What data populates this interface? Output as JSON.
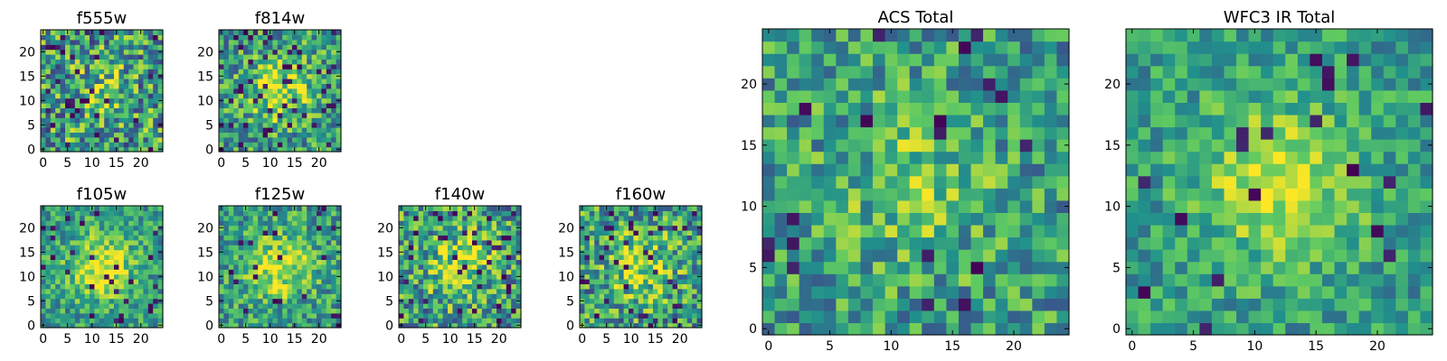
{
  "chart_data": [
    {
      "type": "heatmap",
      "title": "f555w",
      "seed": 11,
      "blob": 0.15,
      "dark": 0.05,
      "noise": 0.55,
      "xticks": [
        "0",
        "5",
        "10",
        "15",
        "20"
      ],
      "yticks": [
        "0",
        "5",
        "10",
        "15",
        "20"
      ],
      "xlim": [
        0,
        24
      ],
      "ylim": [
        0,
        24
      ],
      "grid_size": 25
    },
    {
      "type": "heatmap",
      "title": "f814w",
      "seed": 23,
      "blob": 0.35,
      "dark": 0.07,
      "noise": 0.45,
      "xticks": [
        "0",
        "5",
        "10",
        "15",
        "20"
      ],
      "yticks": [
        "0",
        "5",
        "10",
        "15",
        "20"
      ],
      "xlim": [
        0,
        24
      ],
      "ylim": [
        0,
        24
      ],
      "grid_size": 25
    },
    {
      "type": "heatmap",
      "title": "f105w",
      "seed": 37,
      "blob": 0.45,
      "dark": 0.03,
      "noise": 0.35,
      "xticks": [
        "0",
        "5",
        "10",
        "15",
        "20"
      ],
      "yticks": [
        "0",
        "5",
        "10",
        "15",
        "20"
      ],
      "xlim": [
        0,
        24
      ],
      "ylim": [
        0,
        24
      ],
      "grid_size": 25
    },
    {
      "type": "heatmap",
      "title": "f125w",
      "seed": 41,
      "blob": 0.4,
      "dark": 0.03,
      "noise": 0.4,
      "xticks": [
        "0",
        "5",
        "10",
        "15",
        "20"
      ],
      "yticks": [
        "0",
        "5",
        "10",
        "15",
        "20"
      ],
      "xlim": [
        0,
        24
      ],
      "ylim": [
        0,
        24
      ],
      "grid_size": 25
    },
    {
      "type": "heatmap",
      "title": "f140w",
      "seed": 53,
      "blob": 0.35,
      "dark": 0.06,
      "noise": 0.5,
      "xticks": [
        "0",
        "5",
        "10",
        "15",
        "20"
      ],
      "yticks": [
        "0",
        "5",
        "10",
        "15",
        "20"
      ],
      "xlim": [
        0,
        24
      ],
      "ylim": [
        0,
        24
      ],
      "grid_size": 25
    },
    {
      "type": "heatmap",
      "title": "f160w",
      "seed": 67,
      "blob": 0.35,
      "dark": 0.05,
      "noise": 0.5,
      "xticks": [
        "0",
        "5",
        "10",
        "15",
        "20"
      ],
      "yticks": [
        "0",
        "5",
        "10",
        "15",
        "20"
      ],
      "xlim": [
        0,
        24
      ],
      "ylim": [
        0,
        24
      ],
      "grid_size": 25
    },
    {
      "type": "heatmap",
      "title": "ACS Total",
      "seed": 79,
      "blob": 0.2,
      "dark": 0.03,
      "noise": 0.4,
      "xticks": [
        "0",
        "5",
        "10",
        "15",
        "20"
      ],
      "yticks": [
        "0",
        "5",
        "10",
        "15",
        "20"
      ],
      "xlim": [
        0,
        24
      ],
      "ylim": [
        0,
        24
      ],
      "grid_size": 25
    },
    {
      "type": "heatmap",
      "title": "WFC3 IR Total",
      "seed": 97,
      "blob": 0.4,
      "dark": 0.03,
      "noise": 0.3,
      "xticks": [
        "0",
        "5",
        "10",
        "15",
        "20"
      ],
      "yticks": [
        "0",
        "5",
        "10",
        "15",
        "20"
      ],
      "xlim": [
        0,
        24
      ],
      "ylim": [
        0,
        24
      ],
      "grid_size": 25
    }
  ],
  "colormap": [
    "#440154",
    "#3b528b",
    "#21918c",
    "#5ec962",
    "#fde725"
  ]
}
